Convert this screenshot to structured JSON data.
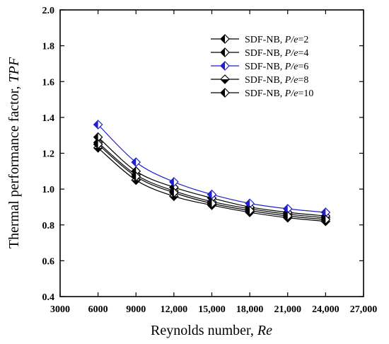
{
  "chart_data": {
    "type": "line",
    "title": "",
    "xlabel": "Reynolds number, ",
    "xlabel_italic": "Re",
    "ylabel": "Thermal performance factor, ",
    "ylabel_italic": "TPF",
    "xlim": [
      3000,
      27000
    ],
    "ylim": [
      0.4,
      2.0
    ],
    "x_ticks": [
      3000,
      6000,
      9000,
      12000,
      15000,
      18000,
      21000,
      24000,
      27000
    ],
    "x_tick_labels": [
      "3000",
      "6000",
      "9000",
      "12,000",
      "15,000",
      "18,000",
      "21,000",
      "24,000",
      "27,000"
    ],
    "y_ticks": [
      0.4,
      0.6,
      0.8,
      1.0,
      1.2,
      1.4,
      1.6,
      1.8,
      2.0
    ],
    "y_tick_labels": [
      "0.4",
      "0.6",
      "0.8",
      "1.0",
      "1.2",
      "1.4",
      "1.6",
      "1.8",
      "2.0"
    ],
    "grid": false,
    "legend_position": "top-right",
    "x": [
      6000,
      9000,
      12000,
      15000,
      18000,
      21000,
      24000
    ],
    "series": [
      {
        "name": "SDF-NB, ",
        "name_italic": "P/e",
        "name_suffix": "=2",
        "marker": "diamond-left",
        "color": "#000000",
        "values": [
          1.26,
          1.08,
          0.99,
          0.93,
          0.89,
          0.86,
          0.84
        ]
      },
      {
        "name": "SDF-NB, ",
        "name_italic": "P/e",
        "name_suffix": "=4",
        "marker": "diamond-left",
        "color": "#000000",
        "values": [
          1.29,
          1.1,
          1.01,
          0.95,
          0.9,
          0.87,
          0.85
        ]
      },
      {
        "name": "SDF-NB, ",
        "name_italic": "P/e",
        "name_suffix": "=6",
        "marker": "diamond-left",
        "color": "#1f1fd0",
        "values": [
          1.36,
          1.15,
          1.04,
          0.97,
          0.92,
          0.89,
          0.87
        ]
      },
      {
        "name": "SDF-NB, ",
        "name_italic": "P/e",
        "name_suffix": "=8",
        "marker": "diamond-bottom",
        "color": "#000000",
        "values": [
          1.23,
          1.05,
          0.96,
          0.91,
          0.87,
          0.84,
          0.82
        ]
      },
      {
        "name": "SDF-NB, ",
        "name_italic": "P/e",
        "name_suffix": "=10",
        "marker": "diamond-left",
        "color": "#000000",
        "values": [
          1.25,
          1.07,
          0.98,
          0.92,
          0.88,
          0.85,
          0.83
        ]
      }
    ]
  }
}
